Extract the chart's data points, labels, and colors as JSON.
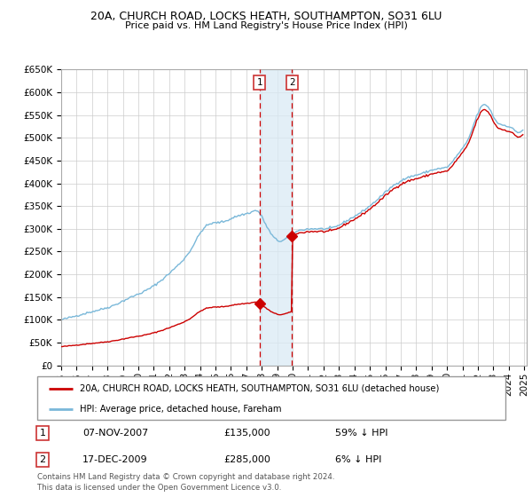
{
  "title1": "20A, CHURCH ROAD, LOCKS HEATH, SOUTHAMPTON, SO31 6LU",
  "title2": "Price paid vs. HM Land Registry's House Price Index (HPI)",
  "sale1_date": "07-NOV-2007",
  "sale1_price": 135000,
  "sale1_label": "59% ↓ HPI",
  "sale2_date": "17-DEC-2009",
  "sale2_price": 285000,
  "sale2_label": "6% ↓ HPI",
  "legend1": "20A, CHURCH ROAD, LOCKS HEATH, SOUTHAMPTON, SO31 6LU (detached house)",
  "legend2": "HPI: Average price, detached house, Fareham",
  "footer": "Contains HM Land Registry data © Crown copyright and database right 2024.\nThis data is licensed under the Open Government Licence v3.0.",
  "ylabel_ticks": [
    "£0",
    "£50K",
    "£100K",
    "£150K",
    "£200K",
    "£250K",
    "£300K",
    "£350K",
    "£400K",
    "£450K",
    "£500K",
    "£550K",
    "£600K",
    "£650K"
  ],
  "ytick_values": [
    0,
    50000,
    100000,
    150000,
    200000,
    250000,
    300000,
    350000,
    400000,
    450000,
    500000,
    550000,
    600000,
    650000
  ],
  "hpi_color": "#7ab8d9",
  "price_color": "#cc0000",
  "marker_color": "#cc0000",
  "shade_color": "#daeaf5",
  "vline_color": "#cc0000",
  "background_color": "#ffffff",
  "grid_color": "#cccccc",
  "box_edge_color": "#cc3333"
}
